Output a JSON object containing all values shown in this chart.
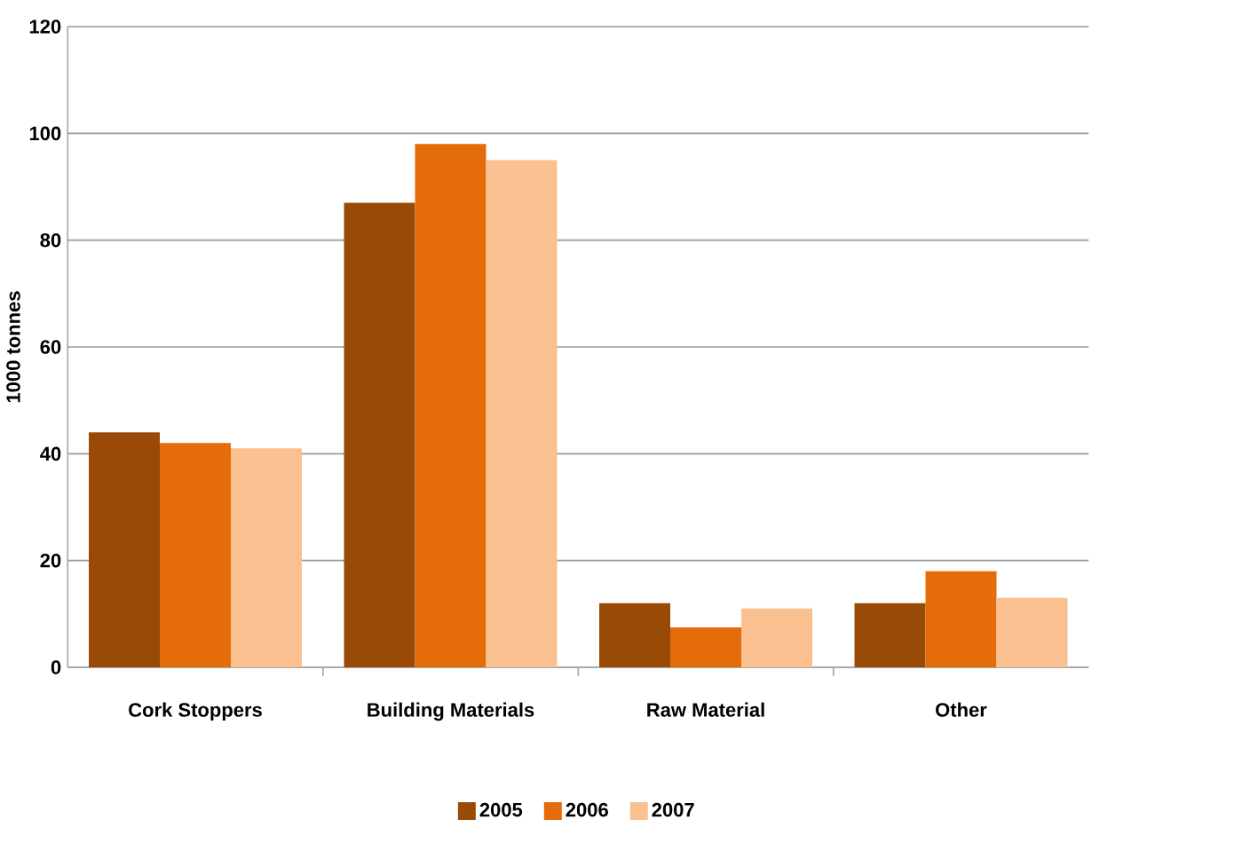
{
  "chart_data": {
    "type": "bar",
    "ylabel": "1000 tonnes",
    "categories": [
      "Cork Stoppers",
      "Building Materials",
      "Raw Material",
      "Other"
    ],
    "series": [
      {
        "name": "2005",
        "color": "#994a06",
        "values": [
          44,
          87,
          12,
          12
        ]
      },
      {
        "name": "2006",
        "color": "#e46c0a",
        "values": [
          42,
          98,
          7.5,
          18
        ]
      },
      {
        "name": "2007",
        "color": "#fac090",
        "values": [
          41,
          95,
          11,
          13
        ]
      }
    ],
    "ylim": [
      0,
      120
    ],
    "yticks": [
      0,
      20,
      40,
      60,
      80,
      100,
      120
    ],
    "grid": "y",
    "legend": "bottom"
  }
}
